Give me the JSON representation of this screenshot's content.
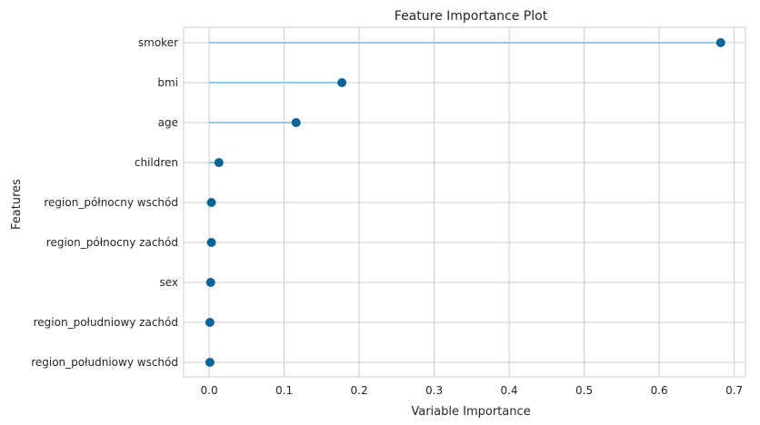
{
  "chart_data": {
    "type": "lollipop",
    "title": "Feature Importance Plot",
    "xlabel": "Variable Importance",
    "ylabel": "Features",
    "xlim": [
      -0.034,
      0.715
    ],
    "xticks": [
      0.0,
      0.1,
      0.2,
      0.3,
      0.4,
      0.5,
      0.6,
      0.7
    ],
    "xtick_labels": [
      "0.0",
      "0.1",
      "0.2",
      "0.3",
      "0.4",
      "0.5",
      "0.6",
      "0.7"
    ],
    "grid": true,
    "categories": [
      "smoker",
      "bmi",
      "age",
      "children",
      "region_północny wschód",
      "region_północny zachód",
      "sex",
      "region_południowy zachód",
      "region_południowy wschód"
    ],
    "values": [
      0.682,
      0.177,
      0.116,
      0.013,
      0.003,
      0.003,
      0.002,
      0.001,
      0.001
    ],
    "colors": {
      "stem": "#87ceeb",
      "marker": "#0a6596",
      "grid": "#cccccc",
      "text": "#262626"
    }
  }
}
